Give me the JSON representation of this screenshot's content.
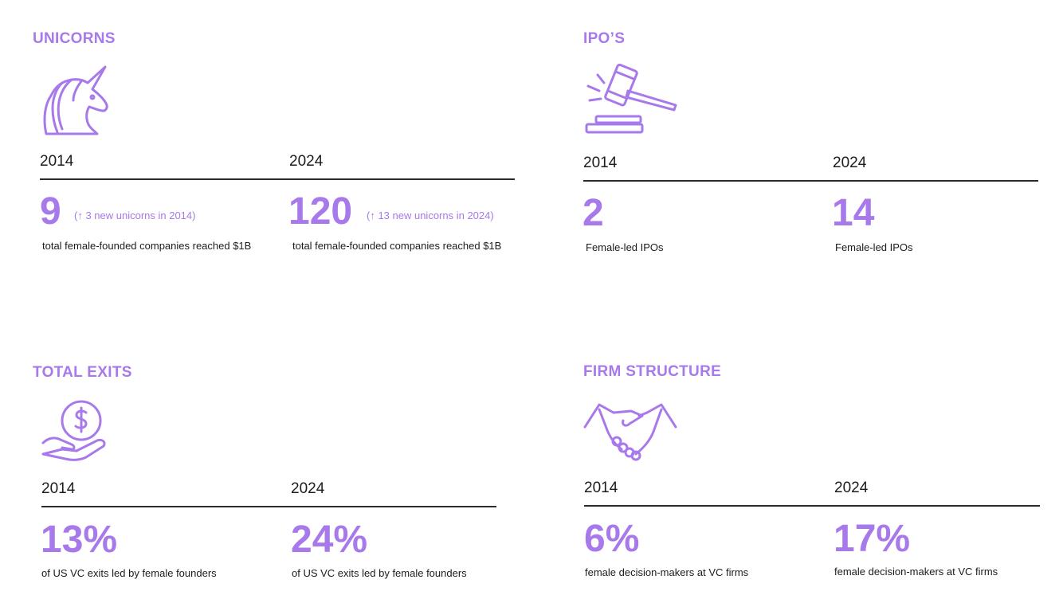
{
  "colors": {
    "accent": "#a779ea",
    "text": "#1c1c1c",
    "rule": "#2b2b2b"
  },
  "sections": {
    "unicorns": {
      "title": "UNICORNS",
      "icon": "unicorn-icon",
      "col1": {
        "year": "2014",
        "value": "9",
        "note": "(↑ 3 new unicorns in 2014)",
        "desc": "total female-founded companies reached $1B"
      },
      "col2": {
        "year": "2024",
        "value": "120",
        "note": "(↑ 13 new unicorns in 2024)",
        "desc": "total female-founded companies reached $1B"
      }
    },
    "ipos": {
      "title": "IPO’S",
      "icon": "gavel-icon",
      "col1": {
        "year": "2014",
        "value": "2",
        "desc": "Female-led IPOs"
      },
      "col2": {
        "year": "2024",
        "value": "14",
        "desc": "Female-led IPOs"
      }
    },
    "exits": {
      "title": "TOTAL EXITS",
      "icon": "hand-coin-icon",
      "col1": {
        "year": "2014",
        "value": "13%",
        "desc": "of US VC exits led by female founders"
      },
      "col2": {
        "year": "2024",
        "value": "24%",
        "desc": "of US VC exits led by female founders"
      }
    },
    "firm": {
      "title": "FIRM STRUCTURE",
      "icon": "handshake-icon",
      "col1": {
        "year": "2014",
        "value": "6%",
        "desc": "female decision-makers at VC firms"
      },
      "col2": {
        "year": "2024",
        "value": "17%",
        "desc": "female decision-makers at VC firms"
      }
    }
  }
}
